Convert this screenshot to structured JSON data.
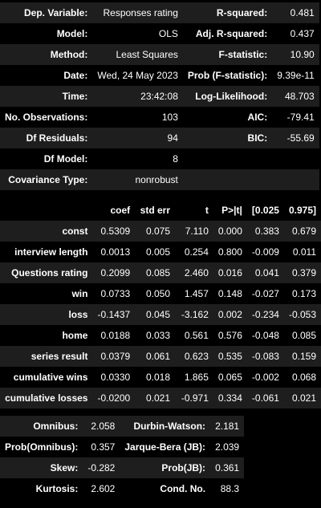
{
  "summary": {
    "rows": [
      [
        "Dep. Variable:",
        "Responses rating",
        "R-squared:",
        "0.481"
      ],
      [
        "Model:",
        "OLS",
        "Adj. R-squared:",
        "0.437"
      ],
      [
        "Method:",
        "Least Squares",
        "F-statistic:",
        "10.90"
      ],
      [
        "Date:",
        "Wed, 24 May 2023",
        "Prob (F-statistic):",
        "9.39e-11"
      ],
      [
        "Time:",
        "23:42:08",
        "Log-Likelihood:",
        "48.703"
      ],
      [
        "No. Observations:",
        "103",
        "AIC:",
        "-79.41"
      ],
      [
        "Df Residuals:",
        "94",
        "BIC:",
        "-55.69"
      ],
      [
        "Df Model:",
        "8",
        "",
        ""
      ],
      [
        "Covariance Type:",
        "nonrobust",
        "",
        ""
      ]
    ]
  },
  "coefficients": {
    "headers": [
      "",
      "coef",
      "std err",
      "t",
      "P>|t|",
      "[0.025",
      "0.975]"
    ],
    "rows": [
      [
        "const",
        "0.5309",
        "0.075",
        "7.110",
        "0.000",
        "0.383",
        "0.679"
      ],
      [
        "interview length",
        "0.0013",
        "0.005",
        "0.254",
        "0.800",
        "-0.009",
        "0.011"
      ],
      [
        "Questions rating",
        "0.2099",
        "0.085",
        "2.460",
        "0.016",
        "0.041",
        "0.379"
      ],
      [
        "win",
        "0.0733",
        "0.050",
        "1.457",
        "0.148",
        "-0.027",
        "0.173"
      ],
      [
        "loss",
        "-0.1437",
        "0.045",
        "-3.162",
        "0.002",
        "-0.234",
        "-0.053"
      ],
      [
        "home",
        "0.0188",
        "0.033",
        "0.561",
        "0.576",
        "-0.048",
        "0.085"
      ],
      [
        "series result",
        "0.0379",
        "0.061",
        "0.623",
        "0.535",
        "-0.083",
        "0.159"
      ],
      [
        "cumulative wins",
        "0.0330",
        "0.018",
        "1.865",
        "0.065",
        "-0.002",
        "0.068"
      ],
      [
        "cumulative losses",
        "-0.0200",
        "0.021",
        "-0.971",
        "0.334",
        "-0.061",
        "0.021"
      ]
    ]
  },
  "diagnostics": {
    "rows": [
      [
        "Omnibus:",
        "2.058",
        "Durbin-Watson:",
        "2.181"
      ],
      [
        "Prob(Omnibus):",
        "0.357",
        "Jarque-Bera (JB):",
        "2.039"
      ],
      [
        "Skew:",
        "-0.282",
        "Prob(JB):",
        "0.361"
      ],
      [
        "Kurtosis:",
        "2.602",
        "Cond. No.",
        "88.3"
      ]
    ]
  }
}
